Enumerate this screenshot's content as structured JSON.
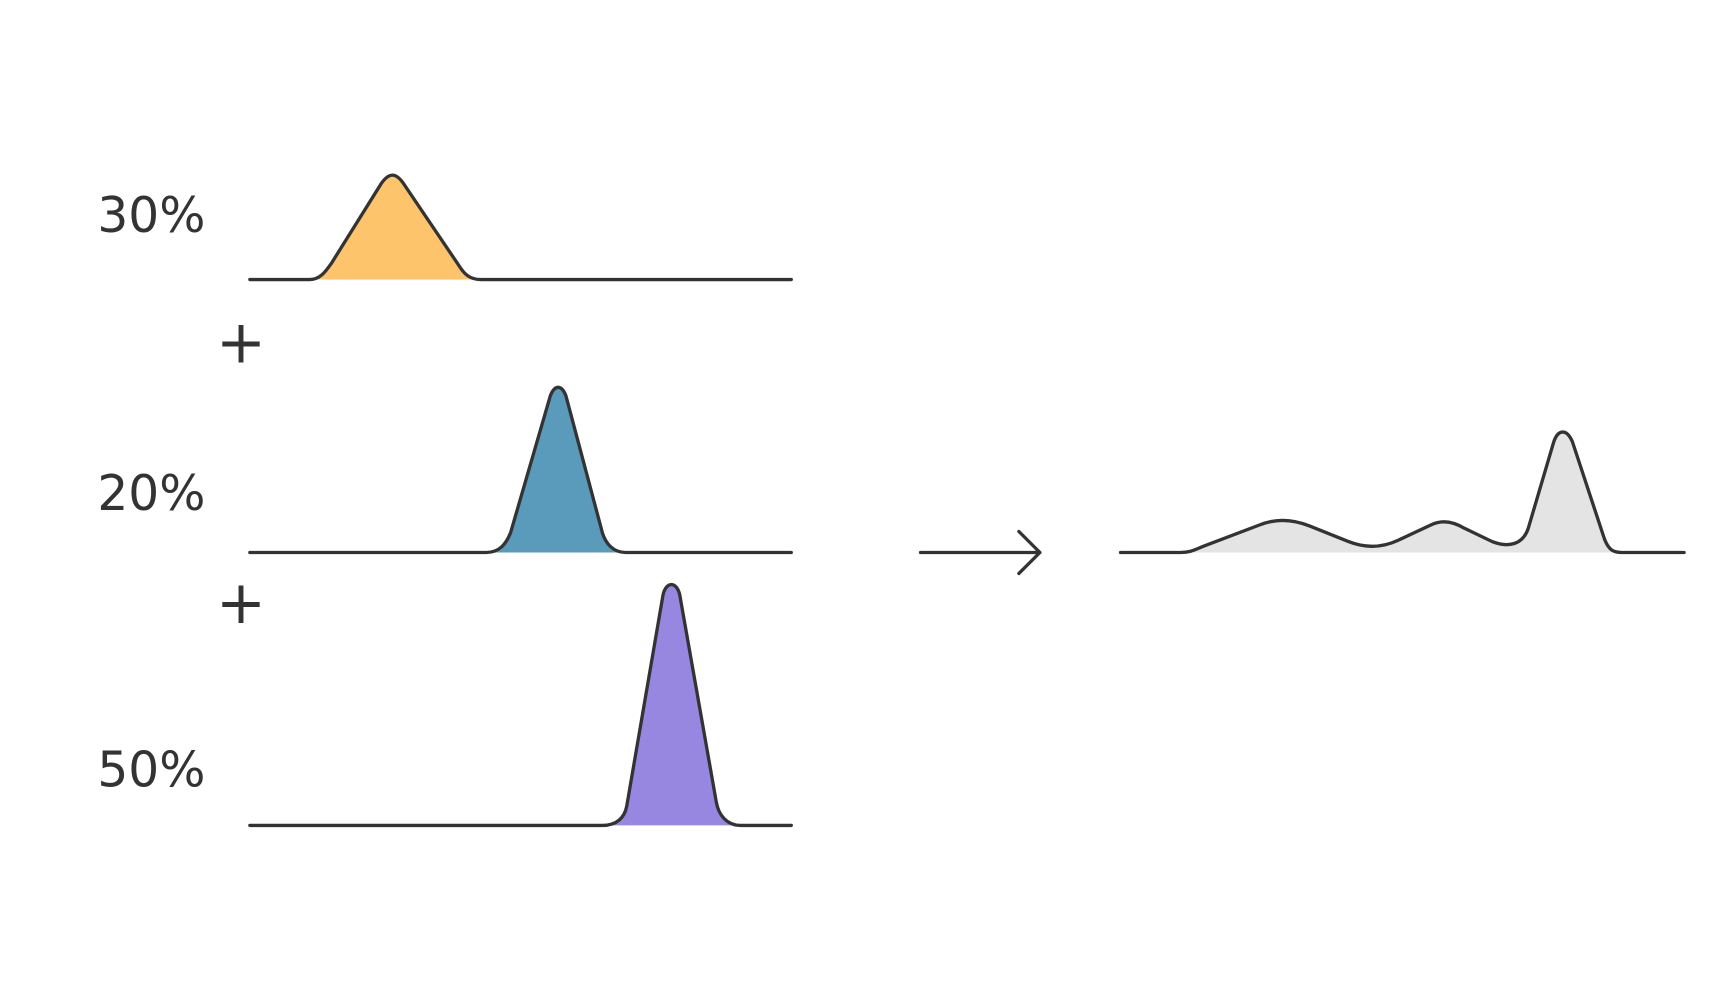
{
  "components": [
    {
      "label": "30%",
      "color": "#fec46c"
    },
    {
      "label": "20%",
      "color": "#5a9aba"
    },
    {
      "label": "50%",
      "color": "#9887e1"
    }
  ],
  "operators": [
    "+",
    "+"
  ],
  "result": {
    "color": "#e4e4e4"
  }
}
